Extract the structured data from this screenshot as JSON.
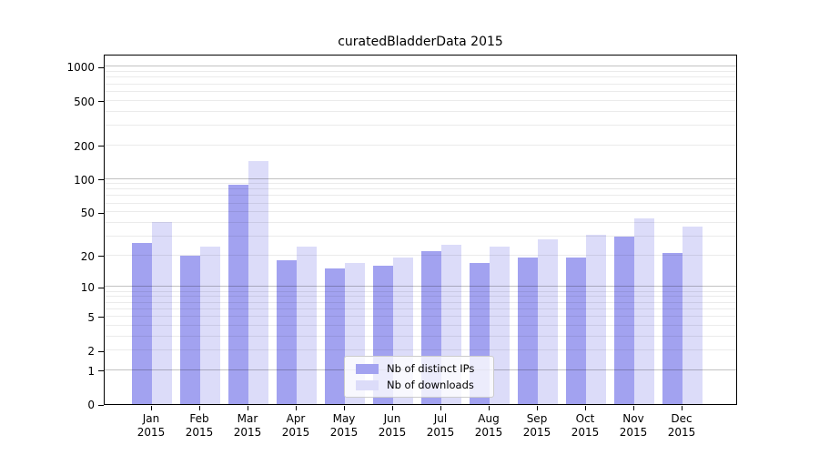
{
  "chart_data": {
    "type": "bar",
    "title": "curatedBladderData 2015",
    "categories": [
      "Jan",
      "Feb",
      "Mar",
      "Apr",
      "May",
      "Jun",
      "Jul",
      "Aug",
      "Sep",
      "Oct",
      "Nov",
      "Dec"
    ],
    "year": "2015",
    "series": [
      {
        "name": "Nb of distinct IPs",
        "color": "#a2a2f0",
        "values": [
          26,
          20,
          89,
          18,
          15,
          16,
          22,
          17,
          19,
          19,
          30,
          21
        ]
      },
      {
        "name": "Nb of downloads",
        "color": "#dcdcf9",
        "values": [
          41,
          24,
          145,
          24,
          17,
          19,
          25,
          24,
          28,
          31,
          44,
          37
        ]
      }
    ],
    "yscale": "log10(1+x)",
    "yticks": [
      0,
      1,
      2,
      5,
      10,
      20,
      50,
      100,
      200,
      500,
      1000
    ],
    "ylim": [
      0,
      1300
    ],
    "xlabel": "",
    "ylabel": "",
    "grid": "horizontal, minor at 2-9 per decade, major at powers of 10",
    "legend_position": "inside lower center"
  },
  "colors": {
    "spine": "#000000",
    "major_gridline": "#c6c6c6",
    "minor_gridline": "#ebebeb",
    "legend_border": "#cccccc",
    "legend_background": "rgba(255,255,255,0.8)"
  }
}
